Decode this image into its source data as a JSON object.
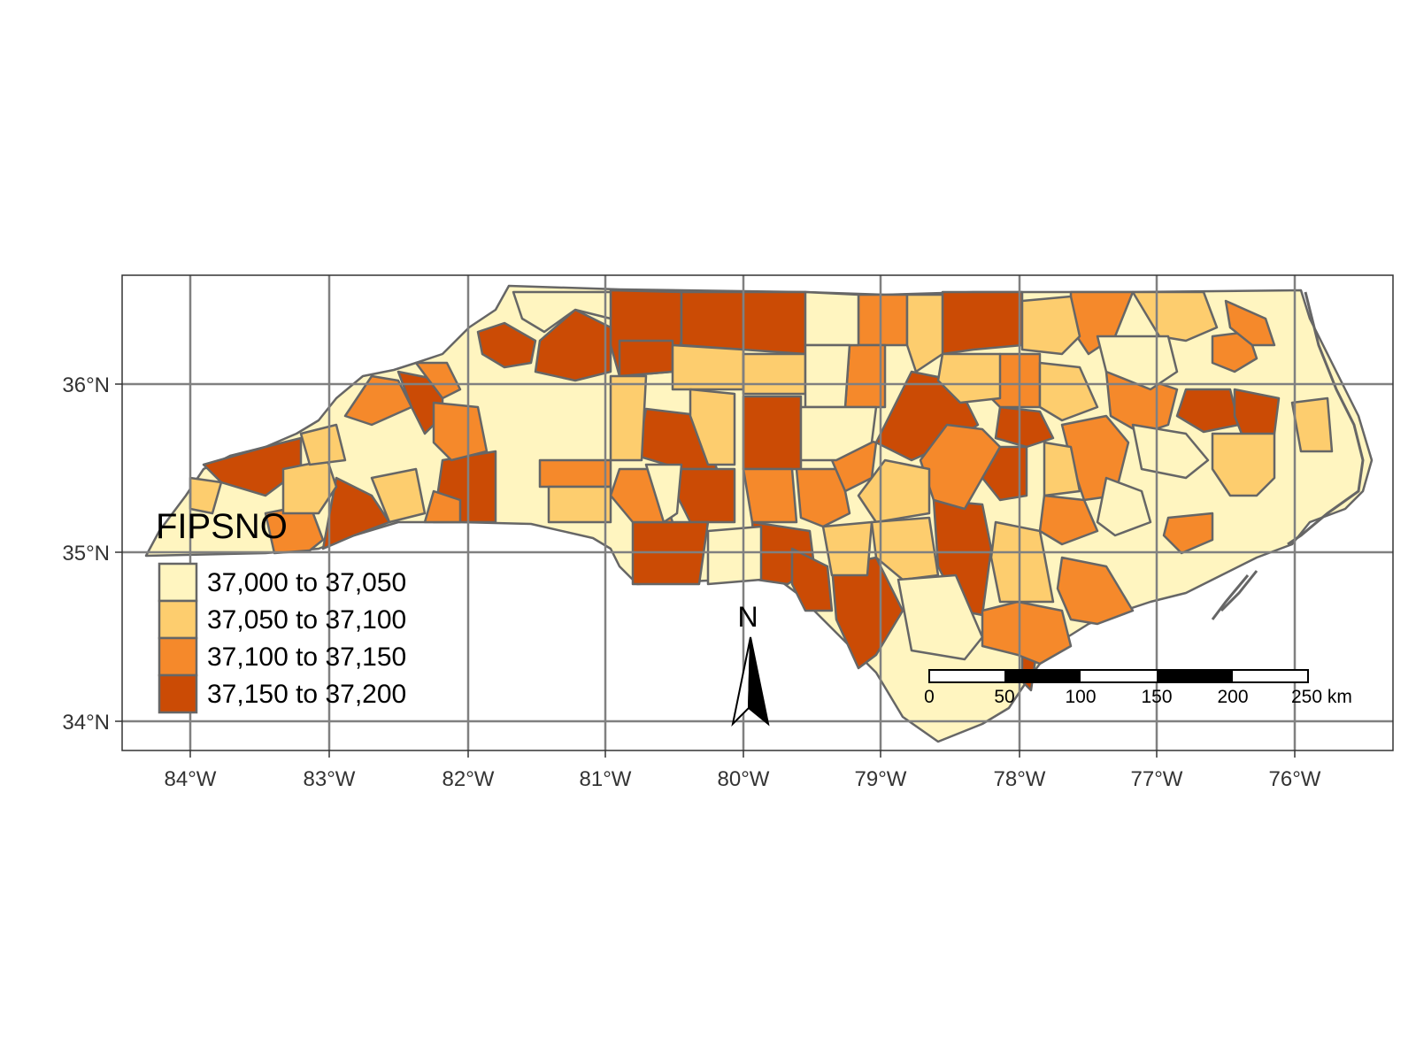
{
  "map": {
    "x_ticks": [
      "84°W",
      "83°W",
      "82°W",
      "81°W",
      "80°W",
      "79°W",
      "78°W",
      "77°W",
      "76°W"
    ],
    "y_ticks": [
      "36°N",
      "35°N",
      "34°N"
    ],
    "grid": true,
    "colors": {
      "background": "#ffffff",
      "grid": "#808080",
      "border": "#666666",
      "class_1": "#FFF5C0",
      "class_2": "#FDCD6E",
      "class_3": "#F5892B",
      "class_4": "#CB4B05"
    }
  },
  "legend": {
    "title": "FIPSNO",
    "placement": "left",
    "items": [
      {
        "label": "37,000 to 37,050",
        "color": "#FFF5C0"
      },
      {
        "label": "37,050 to 37,100",
        "color": "#FDCD6E"
      },
      {
        "label": "37,100 to 37,150",
        "color": "#F5892B"
      },
      {
        "label": "37,150 to 37,200",
        "color": "#CB4B05"
      }
    ]
  },
  "north_arrow": {
    "label": "N",
    "icon": "north-arrow-icon"
  },
  "scale_bar": {
    "labels": [
      "0",
      "50",
      "100",
      "150",
      "200",
      "250 km"
    ]
  }
}
